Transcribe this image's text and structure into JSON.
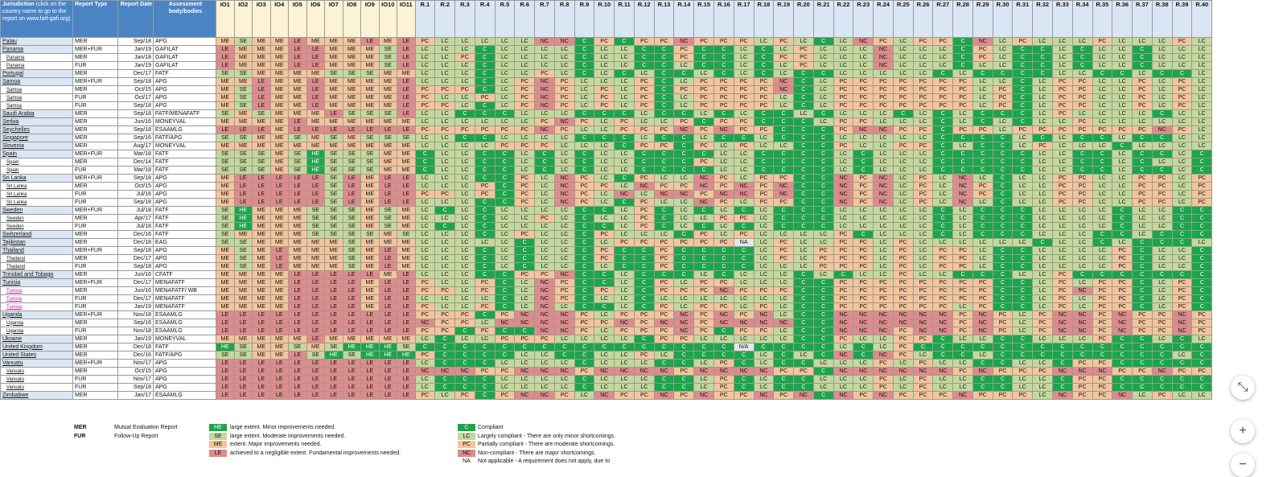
{
  "header": {
    "jurisdiction": "Jurisdiction",
    "jurisdiction_note": "(click on the country name to go to the report on www.fatf-gafi.org)",
    "report_type": "Report Type",
    "report_date": "Report Date",
    "assessment_body": "Assessment body/bodies"
  },
  "io_columns": [
    "IO1",
    "IO2",
    "IO3",
    "IO4",
    "IO5",
    "IO6",
    "IO7",
    "IO8",
    "IO9",
    "IO10",
    "IO11"
  ],
  "r_columns": [
    "R.1",
    "R.2",
    "R.3",
    "R.4",
    "R.5",
    "R.6",
    "R.7",
    "R.8",
    "R.9",
    "R.10",
    "R.11",
    "R.12",
    "R.13",
    "R.14",
    "R.15",
    "R.16",
    "R.17",
    "R.18",
    "R.19",
    "R.20",
    "R.21",
    "R.22",
    "R.23",
    "R.24",
    "R.25",
    "R.26",
    "R.27",
    "R.28",
    "R.29",
    "R.30",
    "R.31",
    "R.32",
    "R.33",
    "R.34",
    "R.35",
    "R.36",
    "R.37",
    "R.38",
    "R.39",
    "R.40"
  ],
  "rows": [
    {
      "j": "Palau",
      "sub": false,
      "t": "MER",
      "d": "Sep/18",
      "b": "APG",
      "io": "ME SE ME ME LE ME ME ME LE ME LE",
      "r": "PC LC LC LC LC LC NC NC C PC C PC PC NC PC PC PC LC PC LC C LC NC PC LC PC PC C NC LC PC LC LC LC PC LC LC LC PC LC"
    },
    {
      "j": "Panama",
      "sub": false,
      "t": "MER+FUR",
      "d": "Jan/19",
      "b": "GAFILAT",
      "io": "LE ME ME ME LE LE ME ME ME SE LE",
      "r": "LC LC LC C LC LC LC LC C LC LC C C PC C C LC C LC PC LC LC LC NC LC LC LC C PC LC C C LC C LC LC C LC LC LC"
    },
    {
      "j": "Panama",
      "sub": true,
      "t": "MER",
      "d": "Jan/18",
      "b": "GAFILAT",
      "io": "LE ME ME ME LE LE ME ME ME SE LE",
      "r": "LC LC PC C LC LC LC LC C LC LC C C PC C C LC C PC PC LC LC LC NC LC LC LC C PC LC C C LC C LC LC C LC LC LC"
    },
    {
      "j": "Panama",
      "sub": true,
      "t": "FUR",
      "d": "Jan/19",
      "b": "GAFILAT",
      "io": "LE ME ME ME LE LE ME ME ME SE LE",
      "r": "LC LC LC C LC LC LC LC C LC LC C C LC C C LC C LC PC LC LC LC NC LC LC LC C LC LC C C LC C LC LC C LC LC LC"
    },
    {
      "j": "Portugal",
      "sub": false,
      "t": "MER",
      "d": "Dec/17",
      "b": "FATF",
      "io": "SE SE ME ME ME ME SE SE SE ME ME",
      "r": "LC LC LC C LC LC PC LC C LC C LC C C LC C LC C LC C C LC LC LC LC LC C LC C C C C LC LC C C LC C C LC"
    },
    {
      "j": "Samoa",
      "sub": false,
      "t": "MER+FUR",
      "d": "Sep/18",
      "b": "APG",
      "io": "ME ME LE ME ME LE ME ME ME ME LE",
      "r": "LC LC LC C LC PC NC PC LC LC LC PC C LC PC PC PC PC NC C LC PC PC PC PC PC PC PC LC LC C LC PC PC LC LC PC LC PC LC"
    },
    {
      "j": "Samoa",
      "sub": true,
      "t": "MER",
      "d": "Oct/15",
      "b": "APG",
      "io": "ME SE LE ME ME LE ME ME ME ME LE",
      "r": "PC PC PC C LC PC NC PC LC PC LC PC C PC PC PC PC PC NC C LC PC PC PC PC PC PC PC LC PC C LC PC PC LC LC PC LC PC LC"
    },
    {
      "j": "Samoa",
      "sub": true,
      "t": "FUR",
      "d": "Oct/17",
      "b": "APG",
      "io": "ME SE LE ME ME LE ME ME ME ME LE",
      "r": "PC LC LC PC LC PC NC PC LC PC LC PC C LC PC PC PC PC LC C LC PC PC PC PC PC PC PC LC PC C LC PC PC LC LC PC LC PC LC"
    },
    {
      "j": "Samoa",
      "sub": true,
      "t": "FUR",
      "d": "Sep/18",
      "b": "APG",
      "io": "ME SE LE ME ME LE ME ME ME ME LE",
      "r": "PC PC LC C LC PC NC PC LC PC LC PC C LC PC PC PC PC LC C LC PC PC PC PC PC PC PC LC PC C LC PC PC LC LC PC LC PC LC"
    },
    {
      "j": "Saudi Arabia",
      "sub": false,
      "t": "MER",
      "d": "Sep/18",
      "b": "FATF/MENAFATF",
      "io": "SE ME SE ME ME ME LE SE SE SE LE",
      "r": "LC LC C C C LC LC LC C C C LC C C LC C LC C C LC C LC LC LC C LC C LC C C C LC PC LC LC LC LC C LC LC"
    },
    {
      "j": "Serbia",
      "sub": false,
      "t": "MER",
      "d": "Jun/16",
      "b": "MONEYVAL",
      "io": "ME ME ME ME LE ME ME ME ME ME ME",
      "r": "LC LC LC LC LC LC PC NC PC LC PC LC LC PC C PC PC C C C LC PC PC LC LC LC C LC C LC C LC LC PC LC LC LC LC LC LC"
    },
    {
      "j": "Seychelles",
      "sub": false,
      "t": "MER",
      "d": "Sep/18",
      "b": "ESAAMLG",
      "io": "LE LE LE ME LE LE LE LE LE LE LE",
      "r": "PC PC PC PC PC PC NC PC LC LC PC PC PC NC PC NC PC PC C C C PC NC NC PC PC C PC PC LC PC PC PC PC PC PC PC NC PC LC"
    },
    {
      "j": "Singapore",
      "sub": false,
      "t": "MER",
      "d": "Sep/16",
      "b": "FATF/APG",
      "io": "SE SE ME ME SE ME SE ME SE SE SE",
      "r": "LC LC C C LC LC LC LC C C C LC C C LC C C LC C C C LC LC LC LC LC C C C C LC C LC C C LC C C LC LC"
    },
    {
      "j": "Slovenia",
      "sub": false,
      "t": "MER",
      "d": "Aug/17",
      "b": "MONEYVAL",
      "io": "ME ME ME ME ME ME ME ME ME ME ME",
      "r": "LC LC LC LC PC PC PC LC LC LC C PC PC C PC LC PC LC LC C C PC LC LC PC PC C LC C C LC PC LC LC LC C LC LC LC LC"
    },
    {
      "j": "Spain",
      "sub": false,
      "t": "MER+FUR",
      "d": "Mar/18",
      "b": "FATF",
      "io": "SE SE SE ME SE HE SE SE SE ME ME",
      "r": "C LC LC C C LC C LC C LC LC C C C C LC LC C C C C LC C LC LC LC C C C C C LC LC C C LC C C LC C"
    },
    {
      "j": "Spain",
      "sub": true,
      "t": "MER",
      "d": "Dec/14",
      "b": "FATF",
      "io": "SE SE SE ME SE HE SE SE SE ME ME",
      "r": "C LC LC C C LC C LC C LC LC C C C PC LC LC C C C C LC C LC LC LC C C C C C LC LC C C LC C LC LC C"
    },
    {
      "j": "Spain",
      "sub": true,
      "t": "FUR",
      "d": "Mar/18",
      "b": "FATF",
      "io": "SE SE SE ME SE HE SE SE SE ME ME",
      "r": "C LC LC C C LC C LC C LC LC C C C C LC LC C C C C LC C LC LC LC C C C C C LC LC C C LC C C LC C"
    },
    {
      "j": "Sri Lanka",
      "sub": false,
      "t": "MER+FUR",
      "d": "Sep/18",
      "b": "APG",
      "io": "ME LE LE LE LE LE SE LE ME LE LE",
      "r": "LC LC LC C C PC LC NC PC LC C PC LC LC NC PC LC PC PC C C NC PC NC LC PC LC NC LC C LC LC PC PC LC LC PC PC LC PC"
    },
    {
      "j": "Sri Lanka",
      "sub": true,
      "t": "MER",
      "d": "Oct/15",
      "b": "APG",
      "io": "ME LE LE LE LE LE SE LE ME LE LE",
      "r": "LC LC LC PC C PC LC NC PC PC LC NC PC PC NC PC NC PC NC C C NC PC NC LC PC LC NC PC C LC LC PC PC LC LC PC PC LC PC"
    },
    {
      "j": "Sri Lanka",
      "sub": true,
      "t": "FUR",
      "d": "Jul/16",
      "b": "APG",
      "io": "ME LE LE LE LE LE SE LE ME LE LE",
      "r": "PC PC LC PC C PC LC NC PC LC NC LC NC NC PC NC NC PC NC C C NC PC NC LC PC LC NC PC C LC LC PC PC LC LC PC PC LC PC"
    },
    {
      "j": "Sri Lanka",
      "sub": true,
      "t": "FUR",
      "d": "Sep/18",
      "b": "APG",
      "io": "ME LE LE LE LE LE SE LE ME LE LE",
      "r": "LC LC LC C C PC LC NC PC LC C PC LC LC NC PC LC PC PC C C NC PC NC LC PC LC NC LC C LC LC PC PC LC LC PC PC LC PC"
    },
    {
      "j": "Sweden",
      "sub": false,
      "t": "MER+FUR",
      "d": "Jul/18",
      "b": "FATF",
      "io": "SE HE ME ME ME SE SE SE ME SE ME",
      "r": "LC C LC C LC LC LC LC C C LC PC C LC C LC C LC C C C LC LC LC LC LC C LC C C C LC LC LC LC C LC LC C C"
    },
    {
      "j": "Sweden",
      "sub": true,
      "t": "MER",
      "d": "Apr/17",
      "b": "FATF",
      "io": "SE HE ME ME ME SE SE SE ME SE ME",
      "r": "LC LC LC C LC LC PC LC C LC LC PC C LC LC PC PC LC C C C LC LC LC LC LC C LC C C C LC LC LC LC C LC LC C C"
    },
    {
      "j": "Sweden",
      "sub": true,
      "t": "FUR",
      "d": "Jul/18",
      "b": "FATF",
      "io": "SE HE ME ME ME SE SE SE ME SE ME",
      "r": "LC C LC C LC LC LC LC C C LC PC C LC C LC C LC C C C LC LC LC LC LC C LC C C C LC LC LC LC C LC LC C C"
    },
    {
      "j": "Switzerland",
      "sub": false,
      "t": "MER",
      "d": "Dec/16",
      "b": "FATF",
      "io": "SE ME ME ME ME SE SE SE SE ME SE",
      "r": "LC LC LC C LC PC LC LC C PC LC LC LC C PC LC PC LC LC LC LC PC C LC LC LC C LC C C C LC LC LC C C LC C C C"
    },
    {
      "j": "Tajikistan",
      "sub": false,
      "t": "MER",
      "d": "Dec/18",
      "b": "EAG",
      "io": "SE SE ME ME ME ME ME SE ME ME ME",
      "r": "LC LC LC LC LC C LC LC C LC PC PC PC PC PC PC NA LC PC LC LC PC PC LC PC LC LC LC LC LC LC C LC LC C LC C C C LC"
    },
    {
      "j": "Thailand",
      "sub": false,
      "t": "MER+FUR",
      "d": "Sep/18",
      "b": "APG",
      "io": "ME SE ME LE ME ME ME SE ME LE ME",
      "r": "LC LC LC C LC C LC LC C PC C C PC C C C C LC PC LC PC PC PC LC PC LC PC PC LC C C LC LC LC LC PC C LC LC C"
    },
    {
      "j": "Thailand",
      "sub": true,
      "t": "MER",
      "d": "Dec/17",
      "b": "APG",
      "io": "ME SE ME LE ME ME ME SE ME LE ME",
      "r": "LC LC LC C LC C LC LC C PC C C PC C C C C LC PC LC PC PC PC LC PC LC PC PC LC C C LC LC LC LC PC C LC LC C"
    },
    {
      "j": "Thailand",
      "sub": true,
      "t": "FUR",
      "d": "Sep/18",
      "b": "APG",
      "io": "ME SE ME LE ME ME ME SE ME LE ME",
      "r": "LC LC LC C LC C LC LC C LC C C PC C C C C LC LC LC PC PC PC LC PC LC PC PC LC C C LC LC LC LC PC C LC LC C"
    },
    {
      "j": "Trinidad and Tobago",
      "sub": false,
      "t": "MER",
      "d": "Jun/16",
      "b": "CFATF",
      "io": "ME ME ME ME LE LE LE LE LE ME LE",
      "r": "LC LC LC C C PC PC NC C C LC C C C LC C LC LC LC C LC C LC LC PC LC LC C C C LC LC PC C C C C C C C"
    },
    {
      "j": "Tunisia",
      "sub": false,
      "t": "MER+FUR",
      "d": "Dec/17",
      "b": "MENAFATF",
      "io": "ME ME ME ME LE LE LE LE ME LE LE",
      "r": "PC LC LC PC C LC NC PC C C LC C PC LC PC PC LC LC LC C C PC PC PC PC PC PC PC PC C C LC PC LC PC PC C LC PC C"
    },
    {
      "j": "Tunisia",
      "sub": true,
      "t": "MER",
      "d": "Jun/16",
      "b": "MENAFATF/ WB",
      "io": "ME ME ME ME LE LE LE LE ME LE LE",
      "r": "PC PC LC PC C LC NC PC C PC LC C PC PC PC NC PC PC PC C C PC PC PC PC PC PC PC PC C C LC PC NC PC PC C LC PC C"
    },
    {
      "j": "Tunisia",
      "sub": true,
      "t": "FUR",
      "d": "Dec/17",
      "b": "MENAFATF",
      "io": "ME ME ME ME LE LE LE LE ME LE LE",
      "r": "LC LC LC LC C LC NC PC C LC LC C LC LC LC LC LC LC LC C C PC PC PC PC PC PC PC PC C C LC PC LC PC PC C LC PC C"
    },
    {
      "j": "Tunisia",
      "sub": true,
      "t": "FUR",
      "d": "Jan/19",
      "b": "MENAFATF",
      "io": "ME ME ME ME LE LE LE LE ME LE LE",
      "r": "PC LC LC PC C LC NC LC C C LC C PC LC PC PC LC PC LC C C PC PC PC PC PC PC LC PC C C LC PC LC PC PC C LC PC C"
    },
    {
      "j": "Uganda",
      "sub": false,
      "t": "MER+FUR",
      "d": "Nov/18",
      "b": "ESAAMLG",
      "io": "LE LE LE LE LE LE LE LE LE LE LE",
      "r": "PC PC PC C PC NC NC NC PC LC PC PC PC NC PC NC PC NC LC C C NC NC NC NC NC NC PC NC PC LC PC NC NC PC NC PC PC NC PC"
    },
    {
      "j": "Uganda",
      "sub": true,
      "t": "MER",
      "d": "Sep/16",
      "b": "ESAAMLG",
      "io": "LE LE LE LE LE LE LE LE LE LE LE",
      "r": "NC PC PC LC NC NC NC NC PC PC NC PC NC NC PC NC NC NC NC C C NC NC NC NC NC NC PC NC PC LC PC NC NC PC NC PC PC NC PC"
    },
    {
      "j": "Uganda",
      "sub": true,
      "t": "FUR",
      "d": "Nov/18",
      "b": "ESAAMLG",
      "io": "LE LE LE LE LE LE LE LE LE LE LE",
      "r": "PC PC C PC C C NC NC PC LC PC PC PC NC PC C PC PC LC C C NC NC NC PC NC NC PC NC PC LC PC NC NC PC NC PC PC NC PC"
    },
    {
      "j": "Ukraine",
      "sub": false,
      "t": "MER",
      "d": "Jan/19",
      "b": "MONEYVAL",
      "io": "ME ME ME ME ME LE ME ME ME ME ME",
      "r": "LC C LC LC PC PC PC LC LC LC LC C PC PC LC LC LC LC LC C C PC LC LC PC PC C LC LC C C LC LC LC PC C C LC C LC"
    },
    {
      "j": "United Kingdom",
      "sub": false,
      "t": "MER",
      "d": "Dec/18",
      "b": "FATF",
      "io": "HE SE ME ME SE ME SE HE HE HE SE",
      "r": "C C C C C C C C C C C C C C C C N/A C C C C LC C LC PC C C C C C C C C C C C C C C C"
    },
    {
      "j": "United States",
      "sub": false,
      "t": "MER",
      "d": "Dec/16",
      "b": "FATF/APG",
      "io": "SE SE ME ME LE SE HE SE HE HE HE",
      "r": "PC C C C C LC LC C C LC LC PC LC C C C C LC C LC C NC C NC PC LC C C LC C C C C C C C C C LC C"
    },
    {
      "j": "Vanuatu",
      "sub": false,
      "t": "MER+FUR",
      "d": "Nov/17",
      "b": "APG",
      "io": "LE LE LE LE LE LE LE LE LE LE LE",
      "r": "LC C C C LC LC LC LC C LC LC LC C C LC PC C LC C C LC LC LC PC LC PC LC LC C C LC LC C PC PC C C C C C"
    },
    {
      "j": "Vanuatu",
      "sub": true,
      "t": "MER",
      "d": "Oct/15",
      "b": "APG",
      "io": "LE LE LE LE LE LE LE LE LE LE LE",
      "r": "NC NC NC PC PC NC NC NC PC NC NC NC NC PC NC NC NC NC PC PC C NC NC NC NC NC NC PC NC PC PC PC NC NC NC PC PC NC PC PC"
    },
    {
      "j": "Vanuatu",
      "sub": true,
      "t": "FUR",
      "d": "Nov/17",
      "b": "APG",
      "io": "LE LE LE LE LE LE LE LE LE LE LE",
      "r": "LC C C C LC LC LC LC C LC LC LC C C LC PC C LC C C LC LC LC PC LC PC LC LC C C LC LC C PC PC C C C C C"
    },
    {
      "j": "Vanuatu",
      "sub": true,
      "t": "FUR",
      "d": "Sep/18",
      "b": "APG",
      "io": "LE LE LE LE LE LE LE LE LE LE LE",
      "r": "LC C C C LC LC LC LC C LC LC LC C C LC PC C LC C C LC LC LC PC LC PC LC LC C C LC LC C PC PC C C C C C"
    },
    {
      "j": "Zimbabwe",
      "sub": false,
      "t": "MER",
      "d": "Jan/17",
      "b": "ESAAMLG",
      "io": "LE LE LE LE LE LE LE LE LE LE LE",
      "r": "PC LC PC C PC NC NC PC LC NC PC PC NC PC NC PC PC NC PC NC C NC PC NC PC PC PC NC PC PC PC LC NC PC PC NC LC PC LC LC"
    }
  ],
  "legend": {
    "mer_abbr": "MER",
    "mer_text": "Mutual Evaluation Report",
    "fur_abbr": "FUR",
    "fur_text": "Follow-Up Report",
    "effectiveness": [
      {
        "code": "HE",
        "text": "large extent. Minor improvements needed."
      },
      {
        "code": "SE",
        "text": "large extent. Moderate improvements needed."
      },
      {
        "code": "ME",
        "text": "extent. Major improvements needed."
      },
      {
        "code": "LE",
        "text": "achieved to a negligible extent. Fundamental improvements needed."
      }
    ],
    "compliance": [
      {
        "code": "C",
        "text": "Compliant"
      },
      {
        "code": "LC",
        "text": "Largely compliant - There are only minor shortcomings."
      },
      {
        "code": "PC",
        "text": "Partially compliant - There are moderate shortcomings."
      },
      {
        "code": "NC",
        "text": "Non-compliant - There are major shortcomings."
      },
      {
        "code": "NA",
        "text": "Not applicable - A requirement does not apply, due to"
      }
    ]
  },
  "controls": {
    "collapse_glyph": "⤡",
    "zoom_in_glyph": "+",
    "zoom_out_glyph": "−"
  }
}
